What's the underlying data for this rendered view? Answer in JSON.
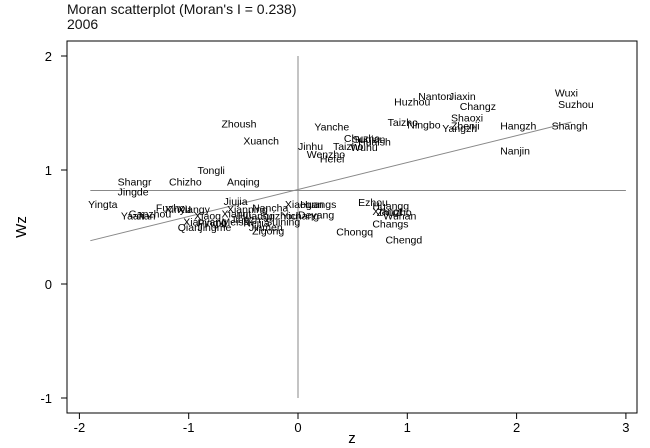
{
  "chart_data": {
    "type": "scatter",
    "title": "Moran scatterplot (Moran's I = 0.238)",
    "subtitle": "2006",
    "xlabel": "z",
    "ylabel": "Wz",
    "xlim": [
      -2.1,
      3.0
    ],
    "ylim": [
      -1.1,
      2.1
    ],
    "xticks": [
      -2,
      -1,
      0,
      1,
      2,
      3
    ],
    "yticks": [
      -1,
      0,
      1,
      2
    ],
    "reference_lines": {
      "x": 0,
      "y": 0.82
    },
    "fit_line": {
      "x": [
        -1.9,
        2.5
      ],
      "y": [
        0.38,
        1.42
      ]
    },
    "grid": false,
    "points": [
      {
        "label": "Wuxi",
        "x": 2.35,
        "y": 1.68
      },
      {
        "label": "Suzhou",
        "x": 2.38,
        "y": 1.58
      },
      {
        "label": "Nanton",
        "x": 1.1,
        "y": 1.65
      },
      {
        "label": "Jiaxin",
        "x": 1.38,
        "y": 1.65
      },
      {
        "label": "Huzhou",
        "x": 0.88,
        "y": 1.6
      },
      {
        "label": "Changz",
        "x": 1.48,
        "y": 1.56
      },
      {
        "label": "Shaoxi",
        "x": 1.4,
        "y": 1.46
      },
      {
        "label": "Taizho",
        "x": 0.82,
        "y": 1.42
      },
      {
        "label": "Ningbo",
        "x": 1.0,
        "y": 1.4
      },
      {
        "label": "Zhenji",
        "x": 1.4,
        "y": 1.39
      },
      {
        "label": "Yangzh",
        "x": 1.32,
        "y": 1.37
      },
      {
        "label": "Hangzh",
        "x": 1.85,
        "y": 1.39
      },
      {
        "label": "Shangh",
        "x": 2.32,
        "y": 1.39
      },
      {
        "label": "Nanjin",
        "x": 1.85,
        "y": 1.17
      },
      {
        "label": "Zhoush",
        "x": -0.7,
        "y": 1.41
      },
      {
        "label": "Yanche",
        "x": 0.15,
        "y": 1.38
      },
      {
        "label": "Xuanch",
        "x": -0.5,
        "y": 1.26
      },
      {
        "label": "Chuzho",
        "x": 0.42,
        "y": 1.28
      },
      {
        "label": "Suqian",
        "x": 0.5,
        "y": 1.27
      },
      {
        "label": "Huaish",
        "x": 0.55,
        "y": 1.25
      },
      {
        "label": "Jinhu",
        "x": 0.0,
        "y": 1.21
      },
      {
        "label": "Taizho",
        "x": 0.32,
        "y": 1.21
      },
      {
        "label": "Wuhu",
        "x": 0.48,
        "y": 1.2
      },
      {
        "label": "Wenzho",
        "x": 0.08,
        "y": 1.14
      },
      {
        "label": "Hefei",
        "x": 0.2,
        "y": 1.1
      },
      {
        "label": "Tongli",
        "x": -0.92,
        "y": 1.0
      },
      {
        "label": "Shangr",
        "x": -1.65,
        "y": 0.9
      },
      {
        "label": "Chizho",
        "x": -1.18,
        "y": 0.9
      },
      {
        "label": "Anqing",
        "x": -0.65,
        "y": 0.9
      },
      {
        "label": "Jingde",
        "x": -1.65,
        "y": 0.81
      },
      {
        "label": "Yingta",
        "x": -1.92,
        "y": 0.7
      },
      {
        "label": "Jiujia",
        "x": -0.68,
        "y": 0.73
      },
      {
        "label": "Nancha",
        "x": -0.42,
        "y": 0.67
      },
      {
        "label": "Xiaogan",
        "x": -0.12,
        "y": 0.7
      },
      {
        "label": "Huangs",
        "x": 0.02,
        "y": 0.7
      },
      {
        "label": "Fuzhou",
        "x": -1.3,
        "y": 0.67
      },
      {
        "label": "Xinyu",
        "x": -1.22,
        "y": 0.66
      },
      {
        "label": "Xiangy",
        "x": -1.1,
        "y": 0.66
      },
      {
        "label": "Xianning",
        "x": -0.65,
        "y": 0.66
      },
      {
        "label": "Ganzhou",
        "x": -1.55,
        "y": 0.62
      },
      {
        "label": "Yaan",
        "x": -1.62,
        "y": 0.6
      },
      {
        "label": "Jian",
        "x": -1.48,
        "y": 0.6
      },
      {
        "label": "Xiangt",
        "x": -0.7,
        "y": 0.62
      },
      {
        "label": "Xiaog",
        "x": -0.95,
        "y": 0.6
      },
      {
        "label": "Huangg",
        "x": -0.55,
        "y": 0.6
      },
      {
        "label": "Suizhou",
        "x": -0.35,
        "y": 0.6
      },
      {
        "label": "Yichang",
        "x": -0.15,
        "y": 0.6
      },
      {
        "label": "Deyang",
        "x": 0.0,
        "y": 0.61
      },
      {
        "label": "Jingzh",
        "x": -0.62,
        "y": 0.57
      },
      {
        "label": "Xianyang",
        "x": -1.05,
        "y": 0.55
      },
      {
        "label": "Pingxi",
        "x": -0.92,
        "y": 0.54
      },
      {
        "label": "Meish",
        "x": -0.7,
        "y": 0.55
      },
      {
        "label": "Neijia",
        "x": -0.5,
        "y": 0.54
      },
      {
        "label": "Suining",
        "x": -0.3,
        "y": 0.55
      },
      {
        "label": "Qianj",
        "x": -1.1,
        "y": 0.5
      },
      {
        "label": "Jingme",
        "x": -0.92,
        "y": 0.5
      },
      {
        "label": "Jinmen",
        "x": -0.45,
        "y": 0.5
      },
      {
        "label": "Zigong",
        "x": -0.42,
        "y": 0.47
      },
      {
        "label": "Ezhou",
        "x": 0.55,
        "y": 0.72
      },
      {
        "label": "Huangg",
        "x": 0.68,
        "y": 0.69
      },
      {
        "label": "Xiangt",
        "x": 0.68,
        "y": 0.64
      },
      {
        "label": "Zhuzho",
        "x": 0.72,
        "y": 0.63
      },
      {
        "label": "Wuhan",
        "x": 0.78,
        "y": 0.6
      },
      {
        "label": "Changs",
        "x": 0.68,
        "y": 0.53
      },
      {
        "label": "Chongq",
        "x": 0.35,
        "y": 0.46
      },
      {
        "label": "Chengd",
        "x": 0.8,
        "y": 0.39
      }
    ]
  }
}
